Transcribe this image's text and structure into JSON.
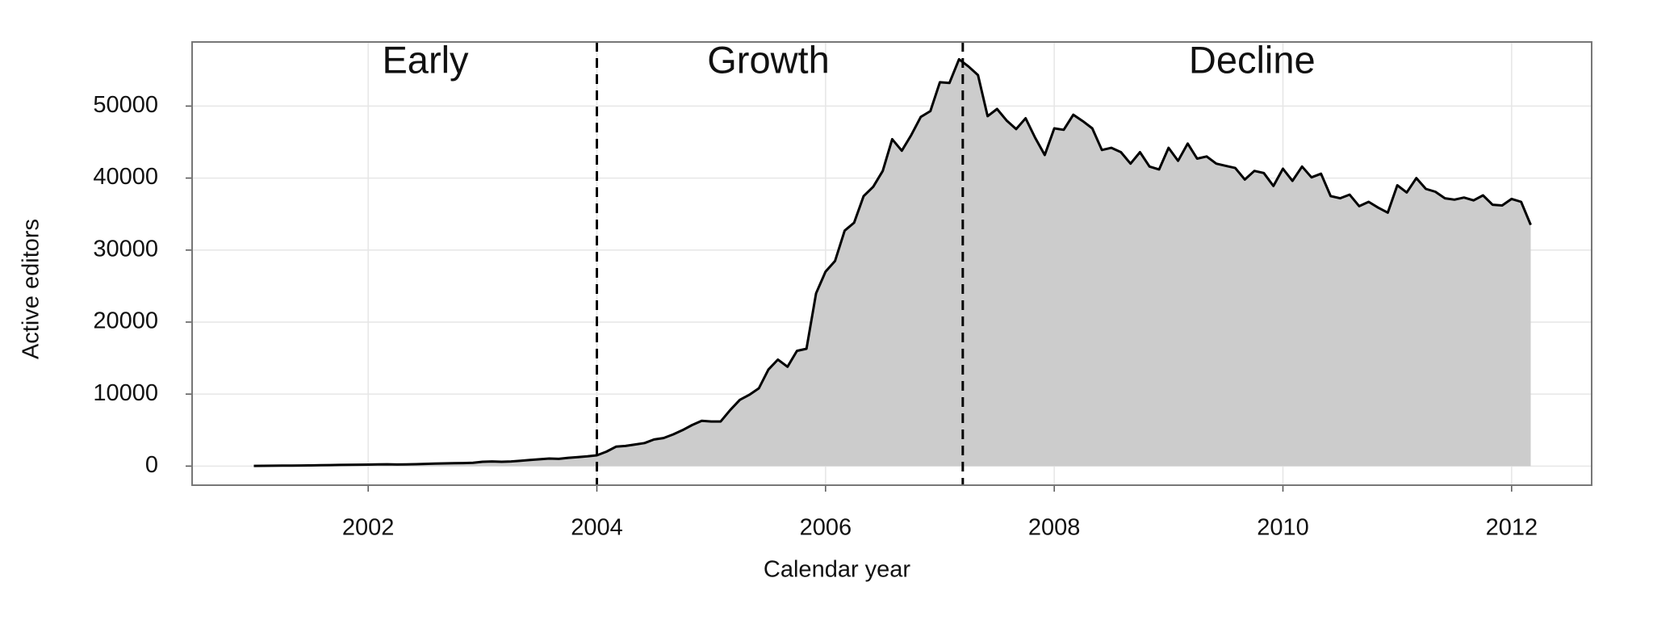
{
  "chart_data": {
    "type": "area",
    "xlabel": "Calendar year",
    "ylabel": "Active editors",
    "color": "#000000",
    "fill": "#cccccc",
    "grid": true,
    "xlim": [
      2000.46,
      2012.7
    ],
    "ylim": [
      -2650,
      58900
    ],
    "xticks": [
      2002,
      2004,
      2006,
      2008,
      2010,
      2012
    ],
    "yticks": [
      0,
      10000,
      20000,
      30000,
      40000,
      50000
    ],
    "vlines": [
      2004.0,
      2007.2
    ],
    "annotations": [
      {
        "text": "Early",
        "x": 2002.5
      },
      {
        "text": "Growth",
        "x": 2005.5
      },
      {
        "text": "Decline",
        "x": 2009.73
      }
    ],
    "x": [
      2001.0,
      2001.083,
      2001.167,
      2001.25,
      2001.333,
      2001.417,
      2001.5,
      2001.583,
      2001.667,
      2001.75,
      2001.833,
      2001.917,
      2002.0,
      2002.083,
      2002.167,
      2002.25,
      2002.333,
      2002.417,
      2002.5,
      2002.583,
      2002.667,
      2002.75,
      2002.833,
      2002.917,
      2003.0,
      2003.083,
      2003.167,
      2003.25,
      2003.333,
      2003.417,
      2003.5,
      2003.583,
      2003.667,
      2003.75,
      2003.833,
      2003.917,
      2004.0,
      2004.083,
      2004.167,
      2004.25,
      2004.333,
      2004.417,
      2004.5,
      2004.583,
      2004.667,
      2004.75,
      2004.833,
      2004.917,
      2005.0,
      2005.083,
      2005.167,
      2005.25,
      2005.333,
      2005.417,
      2005.5,
      2005.583,
      2005.667,
      2005.75,
      2005.833,
      2005.917,
      2006.0,
      2006.083,
      2006.167,
      2006.25,
      2006.333,
      2006.417,
      2006.5,
      2006.583,
      2006.667,
      2006.75,
      2006.833,
      2006.917,
      2007.0,
      2007.083,
      2007.167,
      2007.25,
      2007.333,
      2007.417,
      2007.5,
      2007.583,
      2007.667,
      2007.75,
      2007.833,
      2007.917,
      2008.0,
      2008.083,
      2008.167,
      2008.25,
      2008.333,
      2008.417,
      2008.5,
      2008.583,
      2008.667,
      2008.75,
      2008.833,
      2008.917,
      2009.0,
      2009.083,
      2009.167,
      2009.25,
      2009.333,
      2009.417,
      2009.5,
      2009.583,
      2009.667,
      2009.75,
      2009.833,
      2009.917,
      2010.0,
      2010.083,
      2010.167,
      2010.25,
      2010.333,
      2010.417,
      2010.5,
      2010.583,
      2010.667,
      2010.75,
      2010.833,
      2010.917,
      2011.0,
      2011.083,
      2011.167,
      2011.25,
      2011.333,
      2011.417,
      2011.5,
      2011.583,
      2011.667,
      2011.75,
      2011.833,
      2011.917,
      2012.0,
      2012.083,
      2012.167
    ],
    "values": [
      30,
      40,
      50,
      60,
      70,
      80,
      100,
      120,
      140,
      160,
      180,
      200,
      210,
      230,
      250,
      220,
      240,
      270,
      310,
      350,
      380,
      400,
      420,
      450,
      600,
      650,
      600,
      650,
      750,
      850,
      950,
      1050,
      1000,
      1150,
      1250,
      1350,
      1500,
      2000,
      2700,
      2800,
      3000,
      3200,
      3700,
      3900,
      4400,
      5000,
      5700,
      6300,
      6200,
      6200,
      7800,
      9200,
      9900,
      10800,
      13400,
      14800,
      13800,
      16000,
      16300,
      24000,
      27000,
      28500,
      32700,
      33800,
      37500,
      38800,
      41000,
      45400,
      43800,
      46000,
      48500,
      49300,
      53300,
      53200,
      56500,
      55500,
      54300,
      48600,
      49600,
      48000,
      46800,
      48300,
      45600,
      43200,
      46900,
      46700,
      48800,
      47900,
      46900,
      43900,
      44200,
      43600,
      42000,
      43600,
      41600,
      41200,
      44200,
      42400,
      44800,
      42700,
      43000,
      42000,
      41700,
      41400,
      39800,
      41000,
      40700,
      38900,
      41300,
      39600,
      41600,
      40100,
      40600,
      37500,
      37200,
      37700,
      36100,
      36700,
      35900,
      35200,
      39000,
      38000,
      40000,
      38500,
      38100,
      37200,
      37000,
      37300,
      36900,
      37600,
      36300,
      36200,
      37100,
      36700,
      33500
    ]
  }
}
